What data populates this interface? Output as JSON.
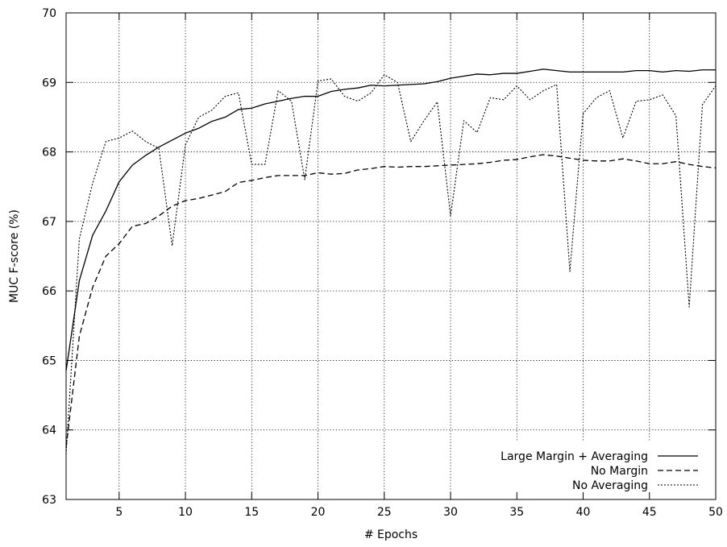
{
  "chart_data": {
    "type": "line",
    "title": "",
    "xlabel": "# Epochs",
    "ylabel": "MUC F-score (%)",
    "xlim": [
      1,
      50
    ],
    "ylim": [
      63,
      70
    ],
    "xticks": [
      5,
      10,
      15,
      20,
      25,
      30,
      35,
      40,
      45,
      50
    ],
    "yticks": [
      63,
      64,
      65,
      66,
      67,
      68,
      69,
      70
    ],
    "grid": true,
    "legend_position": "bottom-right",
    "x": [
      1,
      2,
      3,
      4,
      5,
      6,
      7,
      8,
      9,
      10,
      11,
      12,
      13,
      14,
      15,
      16,
      17,
      18,
      19,
      20,
      21,
      22,
      23,
      24,
      25,
      26,
      27,
      28,
      29,
      30,
      31,
      32,
      33,
      34,
      35,
      36,
      37,
      38,
      39,
      40,
      41,
      42,
      43,
      44,
      45,
      46,
      47,
      48,
      49,
      50
    ],
    "series": [
      {
        "name": "Large Margin + Averaging",
        "style": "solid",
        "values": [
          64.85,
          66.15,
          66.8,
          67.15,
          67.57,
          67.81,
          67.95,
          68.07,
          68.17,
          68.27,
          68.34,
          68.44,
          68.5,
          68.61,
          68.63,
          68.69,
          68.73,
          68.77,
          68.8,
          68.8,
          68.87,
          68.9,
          68.92,
          68.96,
          68.95,
          68.96,
          68.97,
          68.98,
          69.01,
          69.06,
          69.09,
          69.12,
          69.11,
          69.13,
          69.13,
          69.16,
          69.19,
          69.17,
          69.15,
          69.15,
          69.15,
          69.15,
          69.15,
          69.17,
          69.17,
          69.15,
          69.17,
          69.16,
          69.18,
          69.18
        ]
      },
      {
        "name": "No Margin",
        "style": "dashed",
        "values": [
          63.75,
          65.35,
          66.05,
          66.5,
          66.68,
          66.93,
          66.97,
          67.08,
          67.22,
          67.3,
          67.33,
          67.38,
          67.43,
          67.56,
          67.59,
          67.63,
          67.66,
          67.66,
          67.66,
          67.7,
          67.68,
          67.69,
          67.74,
          67.76,
          67.79,
          67.78,
          67.79,
          67.79,
          67.8,
          67.81,
          67.82,
          67.83,
          67.85,
          67.88,
          67.89,
          67.93,
          67.96,
          67.94,
          67.91,
          67.88,
          67.87,
          67.87,
          67.9,
          67.87,
          67.83,
          67.83,
          67.86,
          67.82,
          67.79,
          67.77
        ]
      },
      {
        "name": "No Averaging",
        "style": "dotted",
        "values": [
          63.65,
          66.75,
          67.55,
          68.15,
          68.2,
          68.3,
          68.15,
          68.05,
          66.65,
          68.1,
          68.5,
          68.6,
          68.8,
          68.85,
          67.82,
          67.82,
          68.88,
          68.73,
          67.6,
          69.02,
          69.05,
          68.8,
          68.73,
          68.85,
          69.11,
          69.0,
          68.15,
          68.45,
          68.72,
          67.08,
          68.45,
          68.28,
          68.78,
          68.75,
          68.95,
          68.75,
          68.88,
          68.97,
          66.28,
          68.55,
          68.78,
          68.88,
          68.2,
          68.73,
          68.75,
          68.82,
          68.52,
          65.77,
          68.68,
          68.95
        ]
      }
    ]
  }
}
